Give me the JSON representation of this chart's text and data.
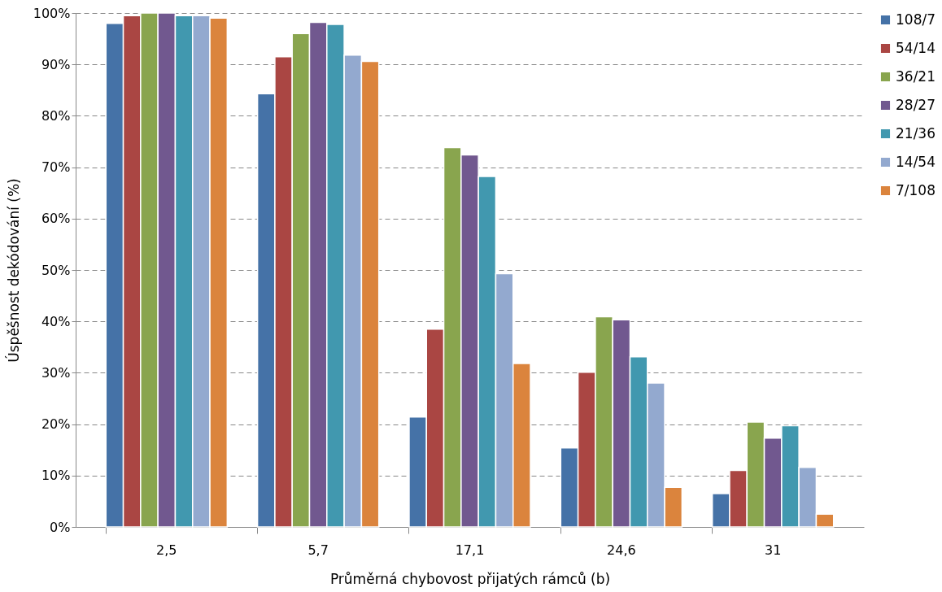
{
  "chart_data": {
    "type": "bar",
    "xlabel": "Průměrná chybovost přijatých rámců (b)",
    "ylabel": "Úspěšnost dekódování (%)",
    "categories": [
      "2,5",
      "5,7",
      "17,1",
      "24,6",
      "31"
    ],
    "series": [
      {
        "name": "108/7",
        "color": "#4572a7",
        "values": [
          98,
          84.3,
          21.4,
          15.4,
          6.5
        ]
      },
      {
        "name": "54/14",
        "color": "#aa4643",
        "values": [
          99.5,
          91.5,
          38.5,
          30.1,
          11.0
        ]
      },
      {
        "name": "36/21",
        "color": "#89a54e",
        "values": [
          100,
          96,
          73.8,
          40.9,
          20.4
        ]
      },
      {
        "name": "28/27",
        "color": "#71588f",
        "values": [
          100,
          98.2,
          72.4,
          40.3,
          17.3
        ]
      },
      {
        "name": "21/36",
        "color": "#4198af",
        "values": [
          99.5,
          97.8,
          68.2,
          33.1,
          19.7
        ]
      },
      {
        "name": "14/54",
        "color": "#93a9cf",
        "values": [
          99.5,
          91.8,
          49.3,
          28.0,
          11.6
        ]
      },
      {
        "name": "7/108",
        "color": "#db843d",
        "values": [
          99,
          90.6,
          31.8,
          7.7,
          2.5
        ]
      }
    ],
    "ylim": [
      0,
      100
    ],
    "yticks": [
      {
        "value": 0,
        "label": "0%"
      },
      {
        "value": 10,
        "label": "10%"
      },
      {
        "value": 20,
        "label": "20%"
      },
      {
        "value": 30,
        "label": "30%"
      },
      {
        "value": 40,
        "label": "40%"
      },
      {
        "value": 50,
        "label": "50%"
      },
      {
        "value": 60,
        "label": "60%"
      },
      {
        "value": 70,
        "label": "70%"
      },
      {
        "value": 80,
        "label": "80%"
      },
      {
        "value": 90,
        "label": "90%"
      },
      {
        "value": 100,
        "label": "100%"
      }
    ],
    "grid": "y",
    "legend": "right"
  }
}
